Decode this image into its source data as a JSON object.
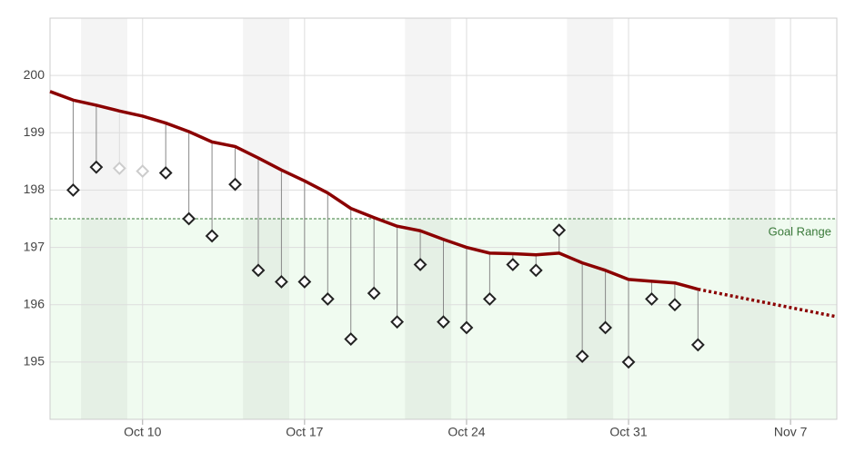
{
  "chart_data": {
    "type": "line",
    "x": [
      "Oct 7",
      "Oct 8",
      "Oct 9",
      "Oct 10",
      "Oct 11",
      "Oct 12",
      "Oct 13",
      "Oct 14",
      "Oct 15",
      "Oct 16",
      "Oct 17",
      "Oct 18",
      "Oct 19",
      "Oct 20",
      "Oct 21",
      "Oct 22",
      "Oct 23",
      "Oct 24",
      "Oct 25",
      "Oct 26",
      "Oct 27",
      "Oct 28",
      "Oct 29",
      "Oct 30",
      "Oct 31",
      "Nov 1",
      "Nov 2",
      "Nov 3"
    ],
    "series": [
      {
        "color": "#222222",
        "values": [
          198.0,
          198.4,
          null,
          null,
          198.3,
          197.5,
          197.2,
          198.1,
          196.6,
          196.4,
          196.4,
          196.1,
          195.4,
          196.2,
          195.7,
          196.7,
          195.7,
          195.6,
          196.1,
          196.7,
          196.6,
          197.3,
          195.1,
          195.6,
          195.0,
          196.1,
          196.0,
          195.3
        ]
      },
      {
        "color": "#cccccc",
        "values": [
          null,
          null,
          198.38,
          198.33,
          null,
          null,
          null,
          null,
          null,
          null,
          null,
          null,
          null,
          null,
          null,
          null,
          null,
          null,
          null,
          null,
          null,
          null,
          null,
          null,
          null,
          null,
          null,
          null
        ]
      }
    ],
    "trend": {
      "color": "#8b0000",
      "x": [
        "Oct 6",
        "Oct 7",
        "Oct 8",
        "Oct 9",
        "Oct 10",
        "Oct 11",
        "Oct 12",
        "Oct 13",
        "Oct 14",
        "Oct 15",
        "Oct 16",
        "Oct 17",
        "Oct 18",
        "Oct 19",
        "Oct 20",
        "Oct 21",
        "Oct 22",
        "Oct 23",
        "Oct 24",
        "Oct 25",
        "Oct 26",
        "Oct 27",
        "Oct 28",
        "Oct 29",
        "Oct 30",
        "Oct 31",
        "Nov 1",
        "Nov 2",
        "Nov 3"
      ],
      "values": [
        199.72,
        199.57,
        199.48,
        199.38,
        199.29,
        199.17,
        199.02,
        198.84,
        198.76,
        198.56,
        198.35,
        198.16,
        197.95,
        197.68,
        197.52,
        197.37,
        197.29,
        197.14,
        197.0,
        196.9,
        196.89,
        196.87,
        196.9,
        196.73,
        196.6,
        196.44,
        196.41,
        196.38,
        196.27
      ]
    },
    "projection": {
      "color": "#8b0000",
      "x": [
        "Nov 3",
        "Nov 9"
      ],
      "values": [
        196.27,
        195.79
      ]
    },
    "goal": {
      "label": "Goal Range",
      "value": 197.5,
      "color": "#3a7a3a"
    },
    "xlim": [
      "Oct 6",
      "Nov 9"
    ],
    "xticks": [
      "Oct 10",
      "Oct 17",
      "Oct 24",
      "Oct 31",
      "Nov 7"
    ],
    "ylim": [
      194,
      201
    ],
    "yticks": [
      195,
      196,
      197,
      198,
      199,
      200
    ],
    "grid": true
  }
}
